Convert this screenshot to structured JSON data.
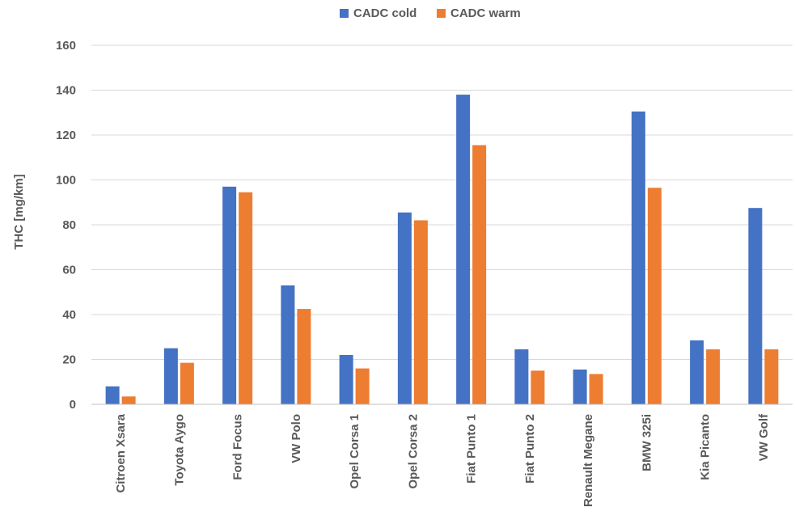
{
  "chart_data": {
    "type": "bar",
    "ylabel": "THC [mg/km]",
    "ylim": [
      0,
      160
    ],
    "yticks": [
      0,
      20,
      40,
      60,
      80,
      100,
      120,
      140,
      160
    ],
    "grid": true,
    "legend_position": "top-center",
    "categories": [
      "Citroen Xsara",
      "Toyota Aygo",
      "Ford Focus",
      "VW Polo",
      "Opel Corsa 1",
      "Opel Corsa 2",
      "Fiat Punto 1",
      "Fiat Punto 2",
      "Renault Megane",
      "BMW 325i",
      "Kia Picanto",
      "VW Golf"
    ],
    "series": [
      {
        "name": "CADC cold",
        "color": "#4472c4",
        "values": [
          8,
          25,
          97,
          53,
          22,
          85.5,
          138,
          24.5,
          15.5,
          130.5,
          28.5,
          87.5
        ]
      },
      {
        "name": "CADC warm",
        "color": "#ed7d31",
        "values": [
          3.5,
          18.5,
          94.5,
          42.5,
          16,
          82,
          115.5,
          15,
          13.5,
          96.5,
          24.5,
          24.5
        ]
      }
    ]
  }
}
